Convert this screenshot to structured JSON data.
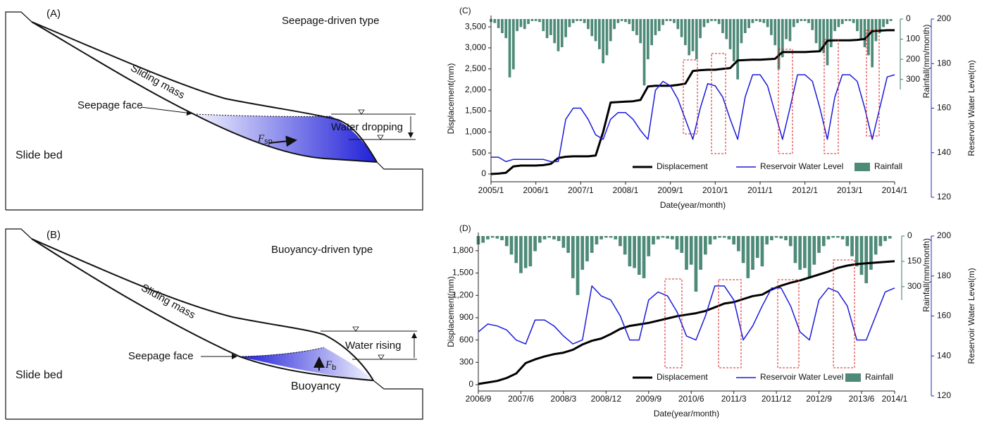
{
  "panels": [
    {
      "label": "(A)",
      "type_label": "Seepage-driven type",
      "sliding_mass": "Sliding mass",
      "seepage_face": "Seepage face",
      "water_label": "Water dropping",
      "slide_bed": "Slide bed",
      "force_symbol": "F",
      "force_subscript": "sp"
    },
    {
      "label": "(B)",
      "type_label": "Buoyancy-driven type",
      "sliding_mass": "Sliding mass",
      "seepage_face": "Seepage face",
      "water_label": "Water rising",
      "slide_bed": "Slide bed",
      "force_symbol": "F",
      "force_subscript": "b",
      "extra_label": "Buoyancy"
    }
  ],
  "chart_data": [
    {
      "type": "combo",
      "panel_label": "(C)",
      "x_label": "Date(year/month)",
      "y_label": "Displacement(mm)",
      "y2_label": "Reservoir Water Level(m)",
      "y3_label": "Rainfall(mm/month)",
      "xlim": [
        "2005/1",
        "2014/1"
      ],
      "xticks": [
        "2005/1",
        "2006/1",
        "2007/1",
        "2008/1",
        "2009/1",
        "2010/1",
        "2011/1",
        "2012/1",
        "2013/1",
        "2014/1"
      ],
      "ylim": [
        -185,
        3770
      ],
      "yticks": [
        0,
        500,
        {
          "value": 1000,
          "label": "1,000"
        },
        {
          "value": 1500,
          "label": "1,500"
        },
        {
          "value": 2000,
          "label": "2,000"
        },
        {
          "value": 2500,
          "label": "2,500"
        },
        {
          "value": 3000,
          "label": "3,000"
        },
        {
          "value": 3500,
          "label": "3,500"
        }
      ],
      "y2lim": [
        120,
        200
      ],
      "y2ticks": [
        120,
        140,
        160,
        180,
        200
      ],
      "y3lim": [
        0,
        350
      ],
      "y3ticks": [
        0,
        100,
        200,
        300
      ],
      "x": [
        "2005/1",
        "2005/3",
        "2005/5",
        "2005/7",
        "2005/9",
        "2005/11",
        "2006/1",
        "2006/3",
        "2006/5",
        "2006/7",
        "2006/9",
        "2006/11",
        "2007/1",
        "2007/3",
        "2007/5",
        "2007/7",
        "2007/9",
        "2007/11",
        "2008/1",
        "2008/3",
        "2008/5",
        "2008/7",
        "2008/9",
        "2008/11",
        "2009/1",
        "2009/3",
        "2009/5",
        "2009/7",
        "2009/9",
        "2009/11",
        "2010/1",
        "2010/3",
        "2010/5",
        "2010/7",
        "2010/9",
        "2010/11",
        "2011/1",
        "2011/3",
        "2011/5",
        "2011/7",
        "2011/9",
        "2011/11",
        "2012/1",
        "2012/3",
        "2012/5",
        "2012/7",
        "2012/9",
        "2012/11",
        "2013/1",
        "2013/3",
        "2013/5",
        "2013/7",
        "2013/9",
        "2013/11",
        "2014/1"
      ],
      "series": [
        {
          "name": "Displacement",
          "color": "#000000",
          "values": [
            0,
            10,
            30,
            180,
            200,
            200,
            200,
            210,
            240,
            380,
            410,
            420,
            420,
            420,
            440,
            1000,
            1700,
            1710,
            1720,
            1730,
            1760,
            2080,
            2100,
            2100,
            2100,
            2120,
            2150,
            2450,
            2470,
            2480,
            2480,
            2500,
            2520,
            2700,
            2710,
            2720,
            2720,
            2730,
            2740,
            2900,
            2900,
            2900,
            2900,
            2910,
            2920,
            3170,
            3180,
            3180,
            3180,
            3190,
            3210,
            3400,
            3410,
            3420,
            3420
          ]
        },
        {
          "name": "Reservoir Water Level",
          "color": "#1a1adb",
          "axis": "y2",
          "values": [
            138,
            138,
            136,
            137,
            137,
            137,
            137,
            137,
            136,
            136,
            155,
            160,
            160,
            155,
            148,
            146,
            155,
            158,
            158,
            155,
            150,
            146,
            168,
            172,
            170,
            164,
            155,
            146,
            160,
            171,
            170,
            165,
            155,
            146,
            165,
            175,
            175,
            170,
            158,
            146,
            160,
            175,
            175,
            172,
            160,
            146,
            165,
            175,
            175,
            172,
            160,
            146,
            160,
            174,
            175
          ]
        },
        {
          "name": "Rainfall",
          "color": "#4e8a78",
          "axis": "y3",
          "x": [
            "2005/1",
            "2005/2",
            "2005/3",
            "2005/4",
            "2005/5",
            "2005/6",
            "2005/7",
            "2005/8",
            "2005/9",
            "2005/10",
            "2005/11",
            "2005/12",
            "2006/1",
            "2006/2",
            "2006/3",
            "2006/4",
            "2006/5",
            "2006/6",
            "2006/7",
            "2006/8",
            "2006/9",
            "2006/10",
            "2006/11",
            "2006/12",
            "2007/1",
            "2007/2",
            "2007/3",
            "2007/4",
            "2007/5",
            "2007/6",
            "2007/7",
            "2007/8",
            "2007/9",
            "2007/10",
            "2007/11",
            "2007/12",
            "2008/1",
            "2008/2",
            "2008/3",
            "2008/4",
            "2008/5",
            "2008/6",
            "2008/7",
            "2008/8",
            "2008/9",
            "2008/10",
            "2008/11",
            "2008/12",
            "2009/1",
            "2009/2",
            "2009/3",
            "2009/4",
            "2009/5",
            "2009/6",
            "2009/7",
            "2009/8",
            "2009/9",
            "2009/10",
            "2009/11",
            "2009/12",
            "2010/1",
            "2010/2",
            "2010/3",
            "2010/4",
            "2010/5",
            "2010/6",
            "2010/7",
            "2010/8",
            "2010/9",
            "2010/10",
            "2010/11",
            "2010/12",
            "2011/1",
            "2011/2",
            "2011/3",
            "2011/4",
            "2011/5",
            "2011/6",
            "2011/7",
            "2011/8",
            "2011/9",
            "2011/10",
            "2011/11",
            "2011/12",
            "2012/1",
            "2012/2",
            "2012/3",
            "2012/4",
            "2012/5",
            "2012/6",
            "2012/7",
            "2012/8",
            "2012/9",
            "2012/10",
            "2012/11",
            "2012/12",
            "2013/1",
            "2013/2",
            "2013/3",
            "2013/4",
            "2013/5",
            "2013/6",
            "2013/7",
            "2013/8",
            "2013/9",
            "2013/10",
            "2013/11",
            "2013/12"
          ],
          "values": [
            15,
            20,
            45,
            70,
            95,
            290,
            250,
            60,
            40,
            50,
            25,
            10,
            10,
            15,
            60,
            95,
            80,
            120,
            160,
            140,
            90,
            40,
            20,
            10,
            10,
            20,
            50,
            85,
            110,
            150,
            220,
            180,
            110,
            50,
            20,
            10,
            15,
            25,
            60,
            80,
            120,
            330,
            200,
            130,
            80,
            60,
            30,
            10,
            10,
            20,
            50,
            90,
            130,
            180,
            160,
            200,
            95,
            40,
            20,
            10,
            10,
            25,
            70,
            100,
            150,
            210,
            300,
            120,
            70,
            45,
            20,
            10,
            15,
            20,
            40,
            80,
            130,
            250,
            190,
            100,
            110,
            40,
            20,
            10,
            10,
            20,
            55,
            120,
            160,
            170,
            230,
            140,
            60,
            40,
            25,
            10,
            10,
            20,
            60,
            100,
            140,
            180,
            240,
            110,
            70,
            40,
            25,
            10
          ]
        }
      ]
    },
    {
      "type": "combo",
      "panel_label": "(D)",
      "x_label": "Date(year/month)",
      "y_label": "Displacement(mm)",
      "y2_label": "Reservoir Water Level(m)",
      "y3_label": "Rainfall(mm/month)",
      "xlim": [
        "2006/9",
        "2014/1"
      ],
      "xticks": [
        "2006/9",
        "2007/6",
        "2008/3",
        "2008/12",
        "2009/9",
        "2010/6",
        "2011/3",
        "2011/12",
        "2012/9",
        "2013/6",
        "2014/1"
      ],
      "ylim": [
        -85,
        2045
      ],
      "yticks": [
        0,
        300,
        600,
        900,
        {
          "value": 1200,
          "label": "1,200"
        },
        {
          "value": 1500,
          "label": "1,500"
        },
        {
          "value": 1800,
          "label": "1,800"
        }
      ],
      "y2lim": [
        120,
        200
      ],
      "y2ticks": [
        120,
        140,
        160,
        180,
        200
      ],
      "y3lim": [
        0,
        380
      ],
      "y3ticks": [
        0,
        150,
        300
      ],
      "x": [
        "2006/9",
        "2006/11",
        "2007/1",
        "2007/3",
        "2007/5",
        "2007/7",
        "2007/9",
        "2007/11",
        "2008/1",
        "2008/3",
        "2008/5",
        "2008/7",
        "2008/9",
        "2008/11",
        "2009/1",
        "2009/3",
        "2009/5",
        "2009/7",
        "2009/9",
        "2009/11",
        "2010/1",
        "2010/3",
        "2010/5",
        "2010/7",
        "2010/9",
        "2010/11",
        "2011/1",
        "2011/3",
        "2011/5",
        "2011/7",
        "2011/9",
        "2011/11",
        "2012/1",
        "2012/3",
        "2012/5",
        "2012/7",
        "2012/9",
        "2012/11",
        "2013/1",
        "2013/3",
        "2013/5",
        "2013/7",
        "2013/9",
        "2013/11",
        "2014/1"
      ],
      "series": [
        {
          "name": "Displacement",
          "color": "#000000",
          "values": [
            10,
            30,
            50,
            90,
            150,
            290,
            340,
            380,
            410,
            430,
            470,
            540,
            590,
            620,
            680,
            750,
            790,
            810,
            830,
            860,
            890,
            920,
            940,
            960,
            990,
            1040,
            1090,
            1110,
            1150,
            1190,
            1210,
            1280,
            1330,
            1370,
            1400,
            1440,
            1480,
            1520,
            1570,
            1600,
            1620,
            1630,
            1640,
            1650,
            1660
          ]
        },
        {
          "name": "Reservoir Water Level",
          "color": "#1a1adb",
          "axis": "y2",
          "values": [
            152,
            156,
            155,
            153,
            148,
            146,
            158,
            158,
            155,
            150,
            146,
            148,
            175,
            170,
            168,
            160,
            148,
            148,
            168,
            172,
            170,
            162,
            150,
            148,
            160,
            175,
            175,
            168,
            148,
            155,
            165,
            174,
            174,
            165,
            152,
            148,
            168,
            174,
            172,
            165,
            148,
            148,
            160,
            172,
            174
          ]
        },
        {
          "name": "Rainfall",
          "color": "#4e8a78",
          "axis": "y3",
          "x": [
            "2006/9",
            "2006/10",
            "2006/11",
            "2006/12",
            "2007/1",
            "2007/2",
            "2007/3",
            "2007/4",
            "2007/5",
            "2007/6",
            "2007/7",
            "2007/8",
            "2007/9",
            "2007/10",
            "2007/11",
            "2007/12",
            "2008/1",
            "2008/2",
            "2008/3",
            "2008/4",
            "2008/5",
            "2008/6",
            "2008/7",
            "2008/8",
            "2008/9",
            "2008/10",
            "2008/11",
            "2008/12",
            "2009/1",
            "2009/2",
            "2009/3",
            "2009/4",
            "2009/5",
            "2009/6",
            "2009/7",
            "2009/8",
            "2009/9",
            "2009/10",
            "2009/11",
            "2009/12",
            "2010/1",
            "2010/2",
            "2010/3",
            "2010/4",
            "2010/5",
            "2010/6",
            "2010/7",
            "2010/8",
            "2010/9",
            "2010/10",
            "2010/11",
            "2010/12",
            "2011/1",
            "2011/2",
            "2011/3",
            "2011/4",
            "2011/5",
            "2011/6",
            "2011/7",
            "2011/8",
            "2011/9",
            "2011/10",
            "2011/11",
            "2011/12",
            "2012/1",
            "2012/2",
            "2012/3",
            "2012/4",
            "2012/5",
            "2012/6",
            "2012/7",
            "2012/8",
            "2012/9",
            "2012/10",
            "2012/11",
            "2012/12",
            "2013/1",
            "2013/2",
            "2013/3",
            "2013/4",
            "2013/5",
            "2013/6",
            "2013/7",
            "2013/8",
            "2013/9",
            "2013/10",
            "2013/11",
            "2013/12"
          ],
          "values": [
            50,
            40,
            20,
            10,
            15,
            25,
            60,
            110,
            160,
            220,
            190,
            180,
            90,
            40,
            20,
            10,
            20,
            30,
            70,
            100,
            250,
            350,
            200,
            150,
            100,
            50,
            20,
            10,
            10,
            20,
            60,
            110,
            180,
            190,
            230,
            250,
            120,
            50,
            20,
            10,
            15,
            20,
            80,
            100,
            200,
            170,
            330,
            200,
            110,
            50,
            20,
            10,
            10,
            20,
            50,
            90,
            160,
            250,
            200,
            130,
            180,
            50,
            25,
            10,
            15,
            25,
            60,
            160,
            200,
            190,
            250,
            170,
            100,
            60,
            20,
            10,
            10,
            20,
            60,
            120,
            180,
            230,
            280,
            200,
            110,
            60,
            30,
            15
          ]
        }
      ]
    }
  ]
}
